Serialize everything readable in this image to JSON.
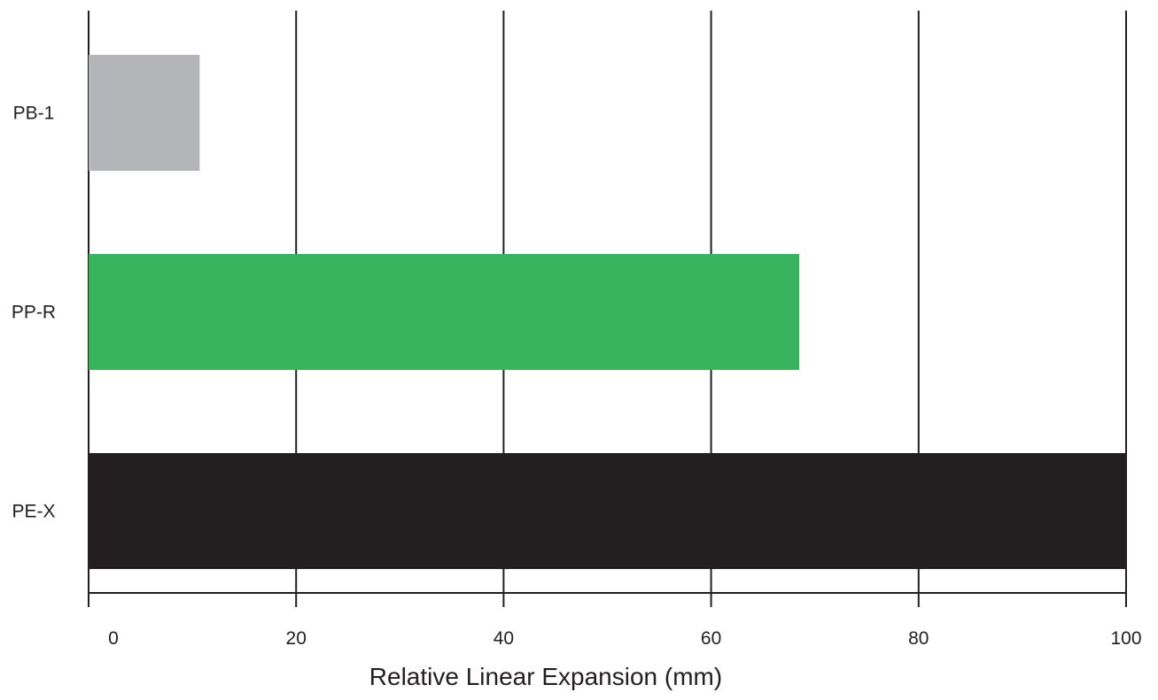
{
  "chart_data": {
    "type": "bar",
    "orientation": "horizontal",
    "categories": [
      "PB-1",
      "PP-R",
      "PE-X"
    ],
    "values": [
      10.7,
      68.5,
      100
    ],
    "bar_colors": [
      "#b3b5b8",
      "#37b45d",
      "#231f20"
    ],
    "xlabel": "Relative Linear Expansion (mm)",
    "xlim": [
      0,
      100
    ],
    "xticks": [
      0,
      20,
      40,
      60,
      80,
      100
    ],
    "xtick_labels": [
      "0",
      "20",
      "40",
      "60",
      "80",
      "100"
    ],
    "grid": "vertical",
    "grid_color": "#231f20",
    "text_color": "#231f20"
  }
}
